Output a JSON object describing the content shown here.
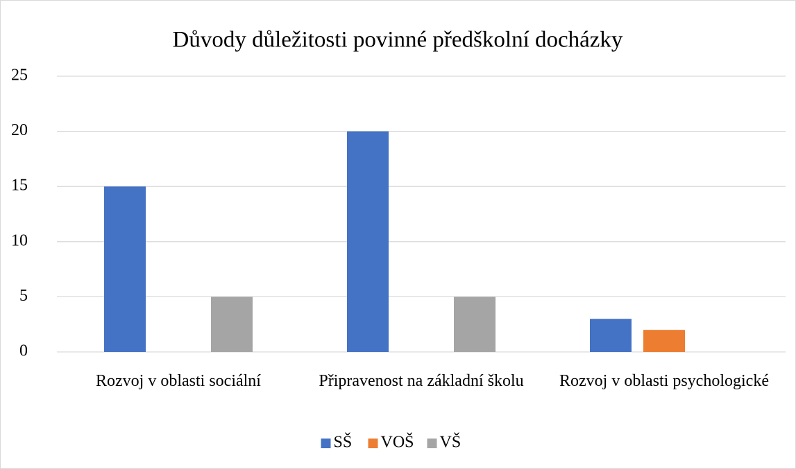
{
  "chart_data": {
    "type": "bar",
    "title": "Důvody důležitosti povinné předškolní docházky",
    "categories": [
      "Rozvoj v oblasti sociální",
      "Připravenost na základní školu",
      "Rozvoj v oblasti psychologické"
    ],
    "series": [
      {
        "name": "SŠ",
        "color": "#4472c4",
        "values": [
          15,
          20,
          3
        ]
      },
      {
        "name": "VOŠ",
        "color": "#ed7d31",
        "values": [
          0,
          0,
          2
        ]
      },
      {
        "name": "VŠ",
        "color": "#a5a5a5",
        "values": [
          5,
          5,
          0
        ]
      }
    ],
    "ylim": [
      0,
      25
    ],
    "yticks": [
      0,
      5,
      10,
      15,
      20,
      25
    ],
    "grid": true,
    "legend": "bottom"
  }
}
